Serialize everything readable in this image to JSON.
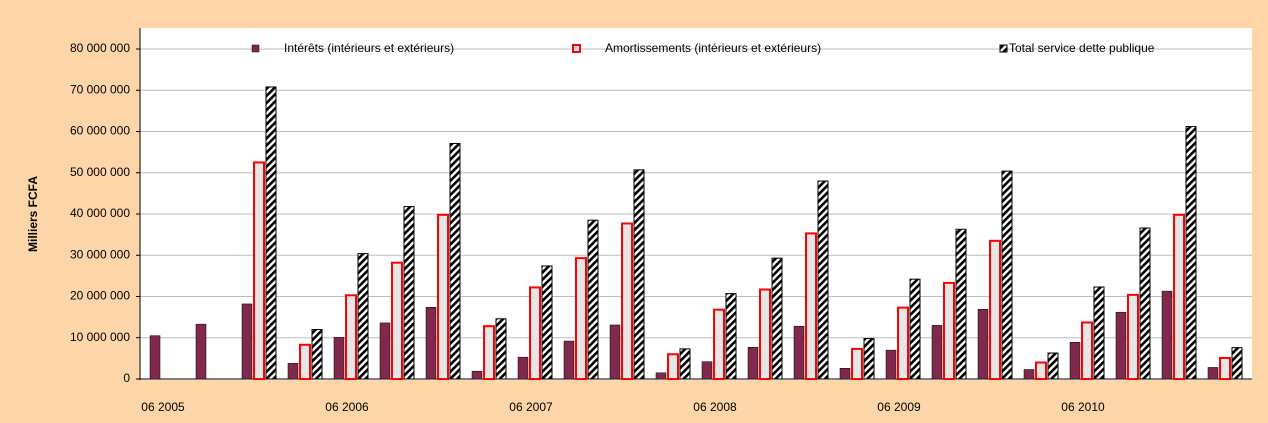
{
  "chart_data": {
    "type": "bar",
    "y_label": "Milliers FCFA",
    "categories": [
      "06 2005",
      null,
      null,
      null,
      "06 2006",
      null,
      null,
      null,
      "06 2007",
      null,
      null,
      null,
      "06 2008",
      null,
      null,
      null,
      "06 2009",
      null,
      null,
      null,
      "06 2010",
      null,
      null,
      null
    ],
    "series": [
      {
        "name": "Intérêts (intérieurs et extérieurs)",
        "color": "#7f2a4c",
        "values": [
          10500000,
          13300000,
          18200000,
          3800000,
          10100000,
          13600000,
          17400000,
          1900000,
          5300000,
          9200000,
          13100000,
          1500000,
          4200000,
          7700000,
          12800000,
          2600000,
          7000000,
          13000000,
          16900000,
          2300000,
          8900000,
          16200000,
          21300000,
          2800000
        ]
      },
      {
        "name": "Amortissements (intérieurs et extérieurs)",
        "color": "#e6e6e6",
        "edge_color": "#ff0000",
        "values": [
          null,
          null,
          52500000,
          8300000,
          20300000,
          28200000,
          39800000,
          12800000,
          22200000,
          29300000,
          37700000,
          6000000,
          16800000,
          21700000,
          35300000,
          7300000,
          17300000,
          23300000,
          33500000,
          4000000,
          13700000,
          20400000,
          39800000,
          5100000
        ]
      },
      {
        "name": "Total service dette publique",
        "color": "#000000",
        "pattern": "hatch",
        "values": [
          null,
          null,
          70800000,
          12000000,
          30400000,
          41800000,
          57100000,
          14600000,
          27400000,
          38500000,
          50700000,
          7300000,
          20700000,
          29300000,
          48000000,
          9800000,
          24200000,
          36300000,
          50400000,
          6300000,
          22300000,
          36600000,
          61200000,
          7600000
        ]
      }
    ],
    "ylim": [
      0,
      80000000
    ],
    "yticks": [
      {
        "value": 0,
        "label": "0"
      },
      {
        "value": 10000000,
        "label": "10 000 000"
      },
      {
        "value": 20000000,
        "label": "20 000 000"
      },
      {
        "value": 30000000,
        "label": "30 000 000"
      },
      {
        "value": 40000000,
        "label": "40 000 000"
      },
      {
        "value": 50000000,
        "label": "50 000 000"
      },
      {
        "value": 60000000,
        "label": "60 000 000"
      },
      {
        "value": 70000000,
        "label": "70 000 000"
      },
      {
        "value": 80000000,
        "label": "80 000 000"
      }
    ],
    "grid": true,
    "legend": "top"
  }
}
